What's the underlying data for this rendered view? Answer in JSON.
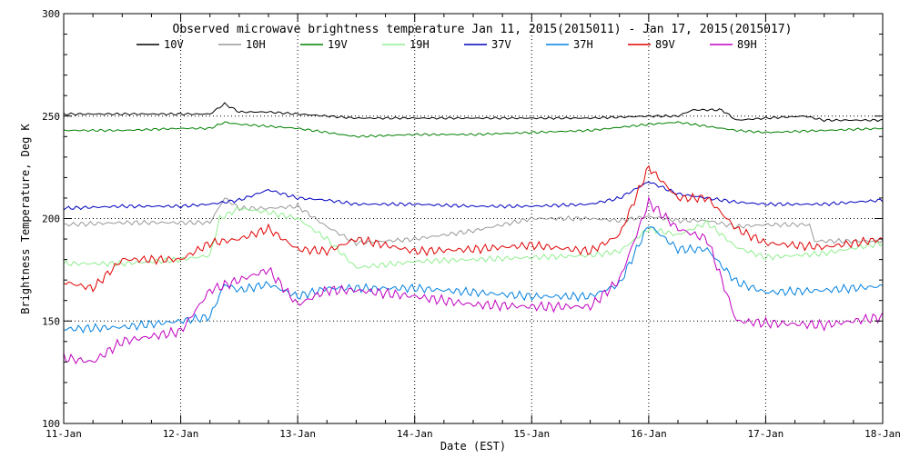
{
  "chart_data": {
    "type": "line",
    "title": "Observed microwave brightness temperature Jan 11, 2015(2015011) - Jan 17, 2015(2015017)",
    "xlabel": "Date (EST)",
    "ylabel": "Brightness Temperature, Deg K",
    "ylim": [
      100,
      300
    ],
    "yticks": [
      100,
      150,
      200,
      250,
      300
    ],
    "ref_lines_y": [
      150,
      200,
      250
    ],
    "xlim": [
      "2015-01-11",
      "2015-01-18"
    ],
    "xticks": [
      "11-Jan",
      "12-Jan",
      "13-Jan",
      "14-Jan",
      "15-Jan",
      "16-Jan",
      "17-Jan",
      "18-Jan"
    ],
    "grid": "dotted vertical at each day, dotted horizontal at 150, 200 and 250",
    "legend_position": "top, single row",
    "series": [
      {
        "name": "10V",
        "color": "#000000",
        "x": [
          "2015-01-11 00:00",
          "2015-01-11 12:00",
          "2015-01-12 00:00",
          "2015-01-12 06:00",
          "2015-01-12 09:00",
          "2015-01-12 12:00",
          "2015-01-12 18:00",
          "2015-01-13 00:00",
          "2015-01-13 06:00",
          "2015-01-13 12:00",
          "2015-01-14 00:00",
          "2015-01-14 12:00",
          "2015-01-15 00:00",
          "2015-01-15 12:00",
          "2015-01-16 00:00",
          "2015-01-16 06:00",
          "2015-01-16 09:00",
          "2015-01-16 15:00",
          "2015-01-16 18:00",
          "2015-01-17 00:00",
          "2015-01-17 08:00",
          "2015-01-17 12:00",
          "2015-01-18 00:00"
        ],
        "y": [
          251,
          251,
          251,
          251,
          256,
          252,
          252,
          251,
          250,
          249,
          249,
          249,
          249,
          249,
          250,
          250,
          253,
          253,
          248,
          249,
          250,
          248,
          248
        ]
      },
      {
        "name": "10H",
        "color": "#999999",
        "x": [
          "2015-01-11 00:00",
          "2015-01-11 12:00",
          "2015-01-12 00:00",
          "2015-01-12 06:00",
          "2015-01-12 09:00",
          "2015-01-12 12:00",
          "2015-01-12 18:00",
          "2015-01-13 00:00",
          "2015-01-13 06:00",
          "2015-01-13 12:00",
          "2015-01-14 00:00",
          "2015-01-14 12:00",
          "2015-01-15 00:00",
          "2015-01-15 12:00",
          "2015-01-15 18:00",
          "2015-01-16 00:00",
          "2015-01-16 06:00",
          "2015-01-16 12:00",
          "2015-01-16 18:00",
          "2015-01-17 00:00",
          "2015-01-17 06:00",
          "2015-01-17 09:00",
          "2015-01-17 10:00",
          "2015-01-18 00:00"
        ],
        "y": [
          197,
          198,
          198,
          198,
          210,
          205,
          205,
          206,
          196,
          188,
          190,
          194,
          200,
          200,
          199,
          201,
          199,
          199,
          196,
          197,
          197,
          197,
          189,
          189
        ]
      },
      {
        "name": "19V",
        "color": "#008000",
        "x": [
          "2015-01-11 00:00",
          "2015-01-11 12:00",
          "2015-01-12 00:00",
          "2015-01-12 06:00",
          "2015-01-12 09:00",
          "2015-01-12 12:00",
          "2015-01-12 18:00",
          "2015-01-13 00:00",
          "2015-01-13 06:00",
          "2015-01-13 12:00",
          "2015-01-14 00:00",
          "2015-01-14 12:00",
          "2015-01-15 00:00",
          "2015-01-15 12:00",
          "2015-01-16 00:00",
          "2015-01-16 06:00",
          "2015-01-16 12:00",
          "2015-01-16 18:00",
          "2015-01-17 00:00",
          "2015-01-17 12:00",
          "2015-01-18 00:00"
        ],
        "y": [
          243,
          243,
          244,
          244,
          247,
          246,
          245,
          244,
          242,
          240,
          241,
          241,
          242,
          243,
          246,
          247,
          245,
          243,
          242,
          243,
          244
        ]
      },
      {
        "name": "19H",
        "color": "#90ee90",
        "x": [
          "2015-01-11 00:00",
          "2015-01-11 12:00",
          "2015-01-12 00:00",
          "2015-01-12 06:00",
          "2015-01-12 08:00",
          "2015-01-12 12:00",
          "2015-01-12 18:00",
          "2015-01-13 00:00",
          "2015-01-13 06:00",
          "2015-01-13 12:00",
          "2015-01-14 00:00",
          "2015-01-14 12:00",
          "2015-01-15 00:00",
          "2015-01-15 12:00",
          "2015-01-15 18:00",
          "2015-01-16 00:00",
          "2015-01-16 06:00",
          "2015-01-16 12:00",
          "2015-01-16 18:00",
          "2015-01-17 00:00",
          "2015-01-17 12:00",
          "2015-01-18 00:00"
        ],
        "y": [
          178,
          178,
          180,
          182,
          200,
          205,
          203,
          200,
          190,
          176,
          179,
          180,
          181,
          182,
          184,
          195,
          192,
          198,
          186,
          181,
          183,
          188
        ]
      },
      {
        "name": "37V",
        "color": "#0000c0",
        "x": [
          "2015-01-11 00:00",
          "2015-01-11 12:00",
          "2015-01-12 00:00",
          "2015-01-12 06:00",
          "2015-01-12 12:00",
          "2015-01-12 18:00",
          "2015-01-13 00:00",
          "2015-01-13 06:00",
          "2015-01-13 12:00",
          "2015-01-14 00:00",
          "2015-01-14 12:00",
          "2015-01-15 00:00",
          "2015-01-15 12:00",
          "2015-01-15 18:00",
          "2015-01-16 00:00",
          "2015-01-16 06:00",
          "2015-01-16 12:00",
          "2015-01-16 18:00",
          "2015-01-17 00:00",
          "2015-01-17 12:00",
          "2015-01-18 00:00"
        ],
        "y": [
          205,
          206,
          206,
          207,
          209,
          214,
          210,
          209,
          207,
          207,
          206,
          206,
          207,
          210,
          218,
          212,
          210,
          208,
          207,
          207,
          209
        ]
      },
      {
        "name": "37H",
        "color": "#0080e0",
        "x": [
          "2015-01-11 00:00",
          "2015-01-11 12:00",
          "2015-01-12 00:00",
          "2015-01-12 06:00",
          "2015-01-12 09:00",
          "2015-01-12 12:00",
          "2015-01-12 18:00",
          "2015-01-13 00:00",
          "2015-01-13 06:00",
          "2015-01-13 12:00",
          "2015-01-14 00:00",
          "2015-01-14 12:00",
          "2015-01-15 00:00",
          "2015-01-15 12:00",
          "2015-01-15 18:00",
          "2015-01-16 00:00",
          "2015-01-16 06:00",
          "2015-01-16 12:00",
          "2015-01-16 18:00",
          "2015-01-17 00:00",
          "2015-01-17 12:00",
          "2015-01-18 00:00"
        ],
        "y": [
          146,
          147,
          150,
          152,
          168,
          165,
          168,
          162,
          166,
          166,
          166,
          164,
          162,
          162,
          168,
          197,
          185,
          185,
          169,
          164,
          165,
          167
        ]
      },
      {
        "name": "89V",
        "color": "#e00000",
        "x": [
          "2015-01-11 00:00",
          "2015-01-11 06:00",
          "2015-01-11 12:00",
          "2015-01-12 00:00",
          "2015-01-12 06:00",
          "2015-01-12 12:00",
          "2015-01-12 18:00",
          "2015-01-13 00:00",
          "2015-01-13 06:00",
          "2015-01-13 12:00",
          "2015-01-14 00:00",
          "2015-01-14 12:00",
          "2015-01-15 00:00",
          "2015-01-15 12:00",
          "2015-01-15 18:00",
          "2015-01-16 00:00",
          "2015-01-16 06:00",
          "2015-01-16 12:00",
          "2015-01-16 18:00",
          "2015-01-17 00:00",
          "2015-01-17 12:00",
          "2015-01-18 00:00"
        ],
        "y": [
          169,
          166,
          180,
          180,
          188,
          190,
          195,
          185,
          184,
          190,
          184,
          185,
          187,
          184,
          192,
          225,
          210,
          210,
          195,
          188,
          186,
          190
        ]
      },
      {
        "name": "89H",
        "color": "#c000c0",
        "x": [
          "2015-01-11 00:00",
          "2015-01-11 06:00",
          "2015-01-11 12:00",
          "2015-01-12 00:00",
          "2015-01-12 06:00",
          "2015-01-12 12:00",
          "2015-01-12 18:00",
          "2015-01-13 00:00",
          "2015-01-13 06:00",
          "2015-01-13 12:00",
          "2015-01-14 00:00",
          "2015-01-14 12:00",
          "2015-01-15 00:00",
          "2015-01-15 12:00",
          "2015-01-15 18:00",
          "2015-01-16 00:00",
          "2015-01-16 06:00",
          "2015-01-16 12:00",
          "2015-01-16 18:00",
          "2015-01-17 00:00",
          "2015-01-17 12:00",
          "2015-01-18 00:00"
        ],
        "y": [
          132,
          130,
          140,
          145,
          165,
          170,
          175,
          158,
          165,
          165,
          162,
          158,
          157,
          157,
          170,
          208,
          195,
          190,
          150,
          149,
          148,
          152
        ]
      }
    ]
  }
}
